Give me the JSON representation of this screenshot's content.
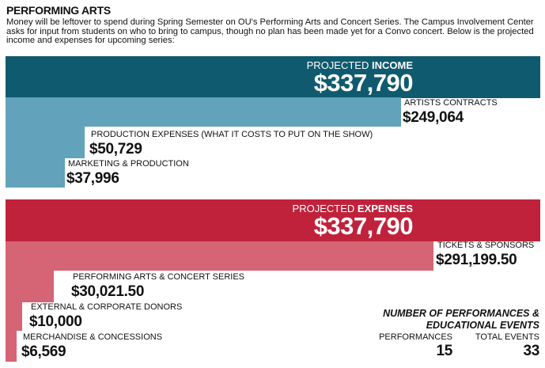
{
  "title": "PERFORMING ARTS",
  "intro": "Money will be leftover to spend during Spring Semester on OU's Performing Arts and Concert Series. The Campus Involvement Center asks for input from students on who to bring to campus, though no plan has been made yet for a Convo concert. Below is the projected income and expenses for upcoming series:",
  "colors": {
    "income_dark": "#0f5a6e",
    "income_light": "#62a2bb",
    "expense_dark": "#c0223b",
    "expense_light": "#d56474"
  },
  "chart_data": [
    {
      "type": "bar",
      "title_prefix": "PROJECTED",
      "title_bold": "INCOME",
      "total": "$337,790",
      "categories": [
        "ARTISTS CONTRACTS",
        "PRODUCTION EXPENSES (WHAT IT COSTS TO PUT ON THE SHOW)",
        "MARKETING & PRODUCTION"
      ],
      "labels": [
        "$249,064",
        "$50,729",
        "$37,996"
      ],
      "values": [
        249064,
        50729,
        37996
      ]
    },
    {
      "type": "bar",
      "title_prefix": "PROJECTED",
      "title_bold": "EXPENSES",
      "total": "$337,790",
      "categories": [
        "TICKETS & SPONSORS",
        "PERFORMING ARTS & CONCERT SERIES",
        "EXTERNAL & CORPORATE DONORS",
        "MERCHANDISE & CONCESSIONS"
      ],
      "labels": [
        "$291,199.50",
        "$30,021.50",
        "$10,000",
        "$6,569"
      ],
      "values": [
        291199.5,
        30021.5,
        10000,
        6569
      ]
    }
  ],
  "events": {
    "title_line1": "NUMBER OF PERFORMANCES &",
    "title_line2": "EDUCATIONAL EVENTS",
    "performances_label": "PERFORMANCES",
    "performances_value": "15",
    "total_label": "TOTAL EVENTS",
    "total_value": "33"
  }
}
